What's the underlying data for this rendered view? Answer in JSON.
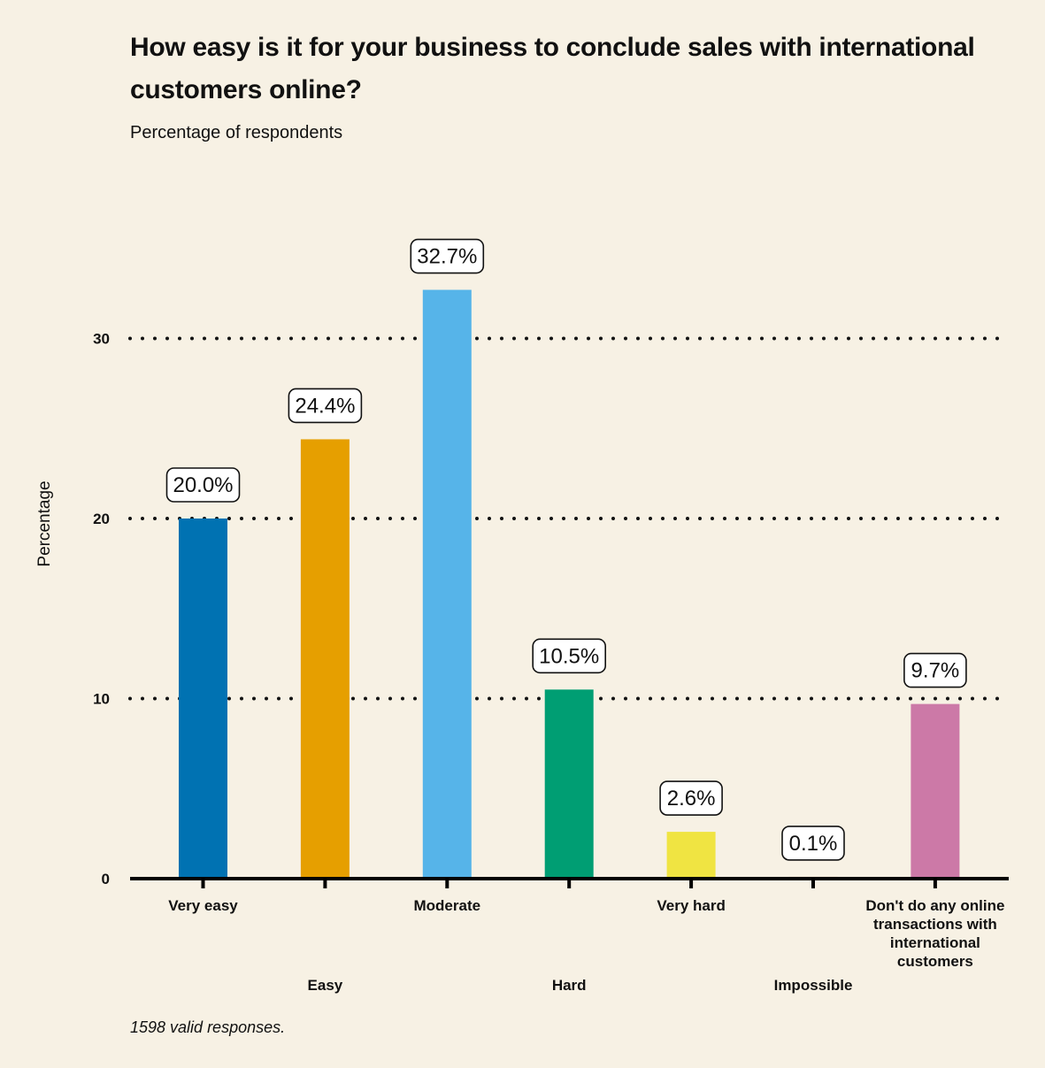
{
  "title": "How easy is it for your business to conclude sales with international customers online?",
  "subtitle": "Percentage of respondents",
  "note": "1598 valid responses.",
  "chart_data": {
    "type": "bar",
    "title": "How easy is it for your business to conclude sales with international customers online?",
    "subtitle": "Percentage of respondents",
    "xlabel": "",
    "ylabel": "Percentage",
    "ylim": [
      0,
      35
    ],
    "yticks": [
      0,
      10,
      20,
      30
    ],
    "grid": true,
    "categories": [
      "Very easy",
      "Easy",
      "Moderate",
      "Hard",
      "Very hard",
      "Impossible",
      "Don't do any online transactions with international customers"
    ],
    "category_label_lines": [
      [
        "Very easy"
      ],
      [
        "Easy"
      ],
      [
        "Moderate"
      ],
      [
        "Hard"
      ],
      [
        "Very hard"
      ],
      [
        "Impossible"
      ],
      [
        "Don't do any online",
        "transactions with",
        "international",
        "customers"
      ]
    ],
    "values": [
      20.0,
      24.4,
      32.7,
      10.5,
      2.6,
      0.1,
      9.7
    ],
    "data_labels": [
      "20.0%",
      "24.4%",
      "32.7%",
      "10.5%",
      "2.6%",
      "0.1%",
      "9.7%"
    ],
    "colors": [
      "#0072b2",
      "#e69f00",
      "#56b4e9",
      "#009e73",
      "#f0e442",
      "#d55e00",
      "#cc79a7"
    ]
  }
}
